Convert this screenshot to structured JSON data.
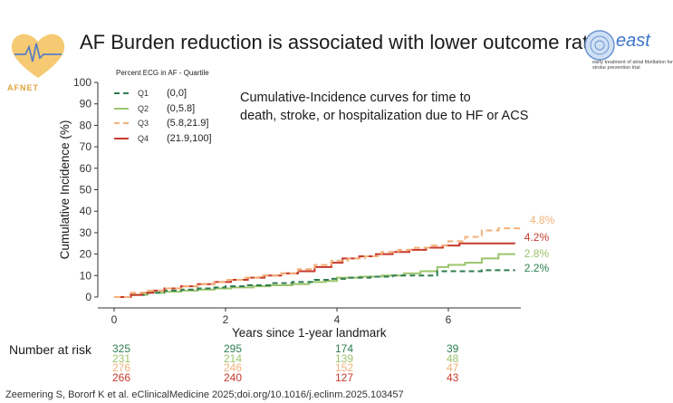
{
  "slide": {
    "title": "AF Burden reduction is associated with lower outcome rate",
    "citation": "Zeemering S, Bororf K  et al. eClinicalMedicine 2025;doi.org/10.1016/j.eclinm.2025.103457",
    "logo_left_text": "AFNET",
    "logo_right_text": "east",
    "logo_right_subtext": "early treatment of atrial fibrillation for stroke prevention trial"
  },
  "chart_data": {
    "type": "line",
    "subtype": "step",
    "annotation_lines": [
      "Cumulative-Incidence curves for time to",
      "death, stroke, or hospitalization due to HF or ACS"
    ],
    "xlabel": "Years since 1-year landmark",
    "ylabel": "Cumulative Incidence (%)",
    "xlim": [
      0,
      7.3
    ],
    "ylim": [
      0,
      100
    ],
    "x_ticks": [
      0,
      2,
      4,
      6
    ],
    "y_ticks": [
      0,
      10,
      20,
      30,
      40,
      50,
      60,
      70,
      80,
      90,
      100
    ],
    "grid": false,
    "legend": {
      "title": "Percent ECG in AF - Quartile",
      "placement": "top-left"
    },
    "series": [
      {
        "name": "Q1",
        "range": "(0,0]",
        "color": "#2e7d4f",
        "dash": "6,4",
        "end_label": "2.2%",
        "points": [
          [
            0,
            0
          ],
          [
            0.3,
            1
          ],
          [
            0.6,
            2
          ],
          [
            0.9,
            3
          ],
          [
            1.2,
            3.5
          ],
          [
            1.5,
            4
          ],
          [
            1.8,
            4.5
          ],
          [
            2.0,
            5
          ],
          [
            2.4,
            5.5
          ],
          [
            2.8,
            6.5
          ],
          [
            3.2,
            7
          ],
          [
            3.6,
            8
          ],
          [
            3.9,
            8.5
          ],
          [
            4.2,
            9
          ],
          [
            4.6,
            9.5
          ],
          [
            5.0,
            10
          ],
          [
            5.5,
            10
          ],
          [
            5.8,
            12
          ],
          [
            6.3,
            12
          ],
          [
            6.6,
            12.5
          ],
          [
            7.2,
            12.5
          ]
        ]
      },
      {
        "name": "Q2",
        "range": "(0,5.8]",
        "color": "#9bc46b",
        "dash": "",
        "end_label": "2.8%",
        "points": [
          [
            0,
            0
          ],
          [
            0.3,
            1
          ],
          [
            0.6,
            2
          ],
          [
            0.9,
            2.5
          ],
          [
            1.2,
            3
          ],
          [
            1.5,
            3.5
          ],
          [
            1.8,
            4
          ],
          [
            2.1,
            4.5
          ],
          [
            2.5,
            5
          ],
          [
            2.8,
            5.5
          ],
          [
            3.2,
            6
          ],
          [
            3.5,
            7
          ],
          [
            3.8,
            7.5
          ],
          [
            4.0,
            9
          ],
          [
            4.4,
            9.5
          ],
          [
            4.8,
            10
          ],
          [
            5.2,
            11
          ],
          [
            5.5,
            12
          ],
          [
            5.8,
            14
          ],
          [
            6.0,
            15
          ],
          [
            6.3,
            16
          ],
          [
            6.6,
            18
          ],
          [
            6.9,
            20
          ],
          [
            7.2,
            20
          ]
        ]
      },
      {
        "name": "Q3",
        "range": "(5.8,21.9]",
        "color": "#f3b27a",
        "dash": "7,4",
        "end_label": "4.8%",
        "points": [
          [
            0,
            0
          ],
          [
            0.3,
            2
          ],
          [
            0.6,
            3
          ],
          [
            0.9,
            4
          ],
          [
            1.2,
            5
          ],
          [
            1.5,
            6
          ],
          [
            1.8,
            7
          ],
          [
            2.0,
            8
          ],
          [
            2.3,
            9
          ],
          [
            2.6,
            10
          ],
          [
            3.0,
            11
          ],
          [
            3.3,
            13
          ],
          [
            3.6,
            15
          ],
          [
            3.9,
            17
          ],
          [
            4.2,
            18
          ],
          [
            4.5,
            19
          ],
          [
            4.8,
            21
          ],
          [
            5.1,
            22
          ],
          [
            5.4,
            23
          ],
          [
            5.7,
            24
          ],
          [
            6.0,
            26
          ],
          [
            6.3,
            28
          ],
          [
            6.6,
            31
          ],
          [
            6.9,
            32
          ],
          [
            7.3,
            32
          ]
        ]
      },
      {
        "name": "Q4",
        "range": "(21.9,100]",
        "color": "#c8392b",
        "dash": "",
        "end_label": "4.2%",
        "points": [
          [
            0,
            0
          ],
          [
            0.3,
            1
          ],
          [
            0.5,
            2
          ],
          [
            0.7,
            3
          ],
          [
            0.9,
            4
          ],
          [
            1.2,
            5
          ],
          [
            1.5,
            6
          ],
          [
            1.8,
            7
          ],
          [
            2.1,
            8
          ],
          [
            2.4,
            9
          ],
          [
            2.7,
            10
          ],
          [
            3.0,
            11
          ],
          [
            3.3,
            12
          ],
          [
            3.6,
            14
          ],
          [
            3.9,
            16
          ],
          [
            4.1,
            18
          ],
          [
            4.4,
            19
          ],
          [
            4.7,
            20
          ],
          [
            5.0,
            21
          ],
          [
            5.3,
            22
          ],
          [
            5.6,
            23
          ],
          [
            5.9,
            24
          ],
          [
            6.2,
            25
          ],
          [
            6.5,
            25
          ],
          [
            7.2,
            25
          ]
        ]
      }
    ],
    "number_at_risk": {
      "label": "Number at risk",
      "times": [
        0,
        2,
        4,
        6
      ],
      "rows": [
        {
          "name": "Q1",
          "color": "#2e7d4f",
          "values": [
            "325",
            "295",
            "174",
            "39"
          ]
        },
        {
          "name": "Q2",
          "color": "#9bc46b",
          "values": [
            "231",
            "214",
            "139",
            "48"
          ]
        },
        {
          "name": "Q3",
          "color": "#f3b27a",
          "values": [
            "276",
            "246",
            "152",
            "47"
          ]
        },
        {
          "name": "Q4",
          "color": "#c8392b",
          "values": [
            "266",
            "240",
            "127",
            "43"
          ]
        }
      ]
    }
  }
}
